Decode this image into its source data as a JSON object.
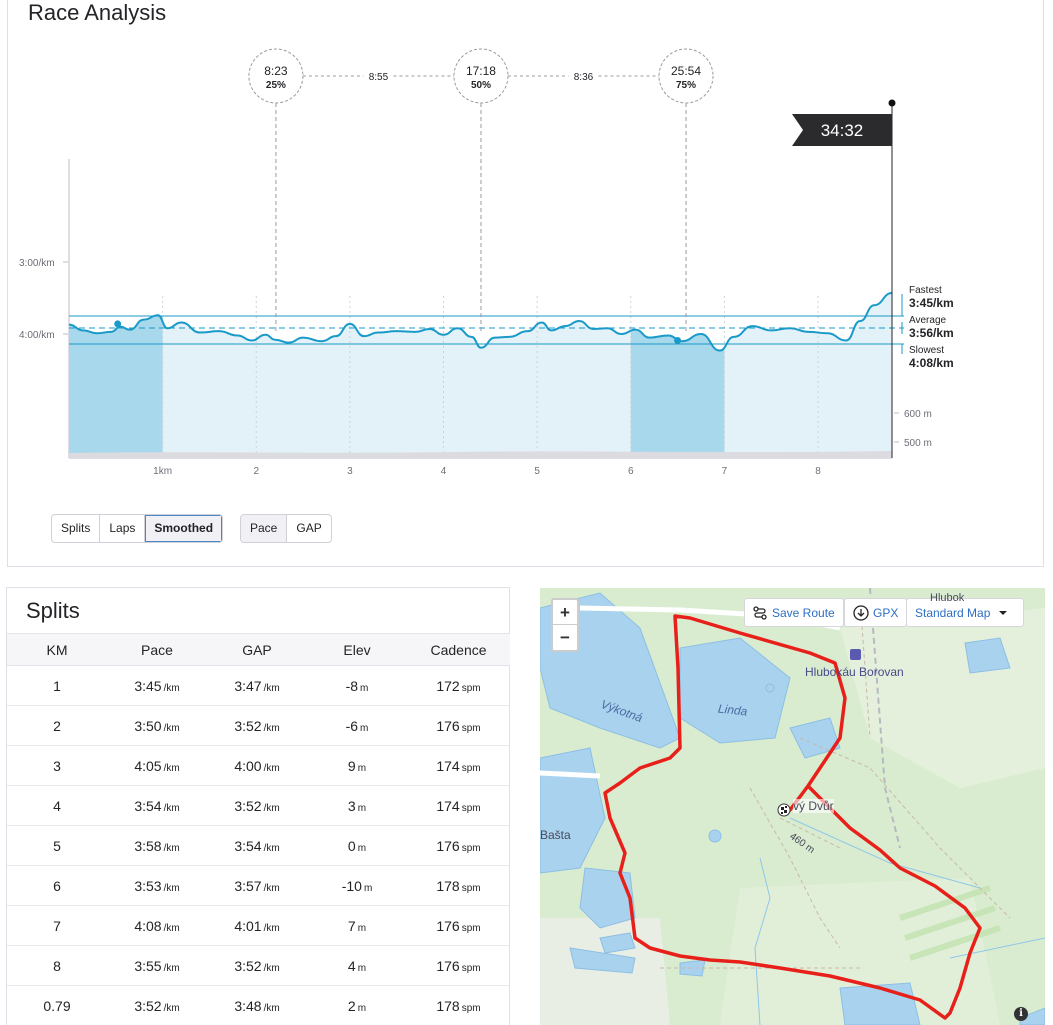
{
  "race": {
    "title": "Race Analysis",
    "milestones": [
      {
        "time": "8:23",
        "pct": "25%"
      },
      {
        "time": "17:18",
        "pct": "50%"
      },
      {
        "time": "25:54",
        "pct": "75%"
      }
    ],
    "gaps": [
      "8:55",
      "8:36"
    ],
    "finish_time": "34:32",
    "y_ticks": [
      "3:00/km",
      "4:00/km"
    ],
    "x_ticks": [
      "1km",
      "2",
      "3",
      "4",
      "5",
      "6",
      "7",
      "8"
    ],
    "elev_ticks": [
      "600 m",
      "500 m"
    ],
    "markers": [
      {
        "label": "Fastest",
        "value": "3:45/km"
      },
      {
        "label": "Average",
        "value": "3:56/km"
      },
      {
        "label": "Slowest",
        "value": "4:08/km"
      }
    ],
    "toggle_view": [
      "Splits",
      "Laps",
      "Smoothed"
    ],
    "toggle_view_active": "Smoothed",
    "toggle_metric": [
      "Pace",
      "GAP"
    ],
    "toggle_metric_active": "Pace",
    "colors": {
      "line": "#1a9ac9",
      "fill_light": "#e3f1f8",
      "fill_dark": "#a8d8ec",
      "ref_line": "#1a9ac9"
    }
  },
  "chart_data": {
    "type": "line",
    "xlabel": "",
    "ylabel": "",
    "x_unit": "km",
    "xlim": [
      0,
      8.79
    ],
    "y_unit": "pace min/km",
    "ylim_inverted": true,
    "series": [
      {
        "values": [
          [
            0.0,
            3.87
          ],
          [
            0.15,
            3.95
          ],
          [
            0.3,
            3.99
          ],
          [
            0.45,
            3.97
          ],
          [
            0.55,
            3.9
          ],
          [
            0.65,
            3.94
          ],
          [
            0.8,
            3.8
          ],
          [
            0.95,
            3.74
          ],
          [
            1.05,
            3.92
          ],
          [
            1.2,
            3.84
          ],
          [
            1.4,
            3.98
          ],
          [
            1.6,
            3.96
          ],
          [
            1.8,
            4.02
          ],
          [
            1.95,
            4.09
          ],
          [
            2.1,
            4.01
          ],
          [
            2.2,
            4.08
          ],
          [
            2.35,
            4.12
          ],
          [
            2.5,
            4.05
          ],
          [
            2.7,
            4.1
          ],
          [
            2.85,
            4.03
          ],
          [
            3.0,
            3.86
          ],
          [
            3.15,
            4.03
          ],
          [
            3.3,
            3.98
          ],
          [
            3.5,
            3.96
          ],
          [
            3.7,
            3.97
          ],
          [
            3.85,
            3.93
          ],
          [
            4.0,
            4.01
          ],
          [
            4.15,
            3.92
          ],
          [
            4.3,
            4.04
          ],
          [
            4.4,
            4.19
          ],
          [
            4.55,
            4.05
          ],
          [
            4.7,
            4.04
          ],
          [
            4.9,
            3.96
          ],
          [
            5.05,
            3.84
          ],
          [
            5.15,
            3.95
          ],
          [
            5.3,
            3.89
          ],
          [
            5.45,
            3.82
          ],
          [
            5.6,
            3.93
          ],
          [
            5.75,
            3.92
          ],
          [
            5.9,
            4.0
          ],
          [
            6.05,
            3.94
          ],
          [
            6.2,
            4.05
          ],
          [
            6.4,
            4.02
          ],
          [
            6.55,
            4.1
          ],
          [
            6.75,
            4.0
          ],
          [
            6.95,
            4.23
          ],
          [
            7.1,
            4.04
          ],
          [
            7.3,
            3.89
          ],
          [
            7.5,
            3.95
          ],
          [
            7.7,
            3.92
          ],
          [
            7.9,
            3.97
          ],
          [
            8.1,
            3.99
          ],
          [
            8.3,
            4.09
          ],
          [
            8.45,
            3.82
          ],
          [
            8.6,
            3.6
          ],
          [
            8.79,
            3.43
          ]
        ]
      }
    ],
    "highlighted_ranges_km": [
      [
        0,
        1
      ],
      [
        6,
        7
      ]
    ],
    "reference_lines": [
      {
        "label": "Fastest",
        "pace": "3:45/km"
      },
      {
        "label": "Average",
        "pace": "3:56/km"
      },
      {
        "label": "Slowest",
        "pace": "4:08/km"
      }
    ]
  },
  "splits": {
    "title": "Splits",
    "headers": [
      "KM",
      "Pace",
      "GAP",
      "Elev",
      "Cadence"
    ],
    "rows": [
      {
        "km": "1",
        "pace": "3:45",
        "gap": "3:47",
        "elev": "-8",
        "cad": "172"
      },
      {
        "km": "2",
        "pace": "3:50",
        "gap": "3:52",
        "elev": "-6",
        "cad": "176"
      },
      {
        "km": "3",
        "pace": "4:05",
        "gap": "4:00",
        "elev": "9",
        "cad": "174"
      },
      {
        "km": "4",
        "pace": "3:54",
        "gap": "3:52",
        "elev": "3",
        "cad": "174"
      },
      {
        "km": "5",
        "pace": "3:58",
        "gap": "3:54",
        "elev": "0",
        "cad": "176"
      },
      {
        "km": "6",
        "pace": "3:53",
        "gap": "3:57",
        "elev": "-10",
        "cad": "178"
      },
      {
        "km": "7",
        "pace": "4:08",
        "gap": "4:01",
        "elev": "7",
        "cad": "176"
      },
      {
        "km": "8",
        "pace": "3:55",
        "gap": "3:52",
        "elev": "4",
        "cad": "176"
      },
      {
        "km": "0.79",
        "pace": "3:52",
        "gap": "3:48",
        "elev": "2",
        "cad": "178"
      }
    ],
    "pace_unit": "/km",
    "elev_unit": "m",
    "cad_unit": "spm"
  },
  "map": {
    "zoom_in": "+",
    "zoom_out": "−",
    "save_route": "Save Route",
    "gpx": "GPX",
    "map_style": "Standard Map",
    "labels": {
      "hluboka": "Hlubokáu Borovan",
      "vykotna": "Výkotná",
      "linda": "Linda",
      "dvur": "vý Dvůr",
      "basta": "Bašta",
      "contour": "460 m",
      "top_right": "Hlubok",
      "info": "i"
    },
    "colors": {
      "route": "#e8201a",
      "water": "#a9d2ef",
      "land": "#d9ecd0"
    }
  }
}
